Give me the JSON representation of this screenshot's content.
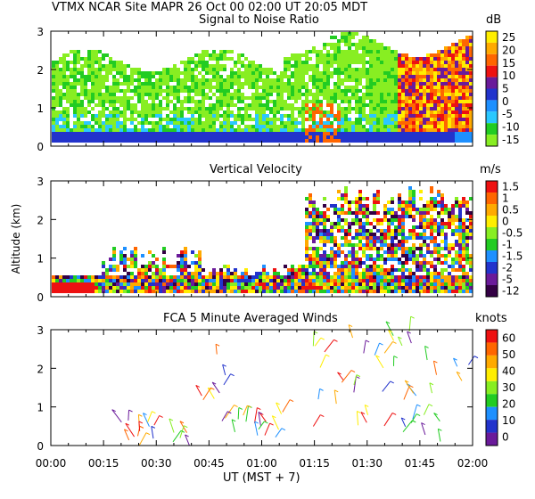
{
  "header": {
    "site": "VTMX   NCAR Site   MAPR 26 Oct 00   02:00 UT   20:05   MDT"
  },
  "chart_data": [
    {
      "type": "heatmap",
      "title": "Signal to Noise Ratio",
      "units": "dB",
      "ylim": [
        0,
        3
      ],
      "yticks": [
        "0",
        "1",
        "2",
        "3"
      ],
      "colorbar": {
        "labels": [
          "25",
          "20",
          "15",
          "10",
          "5",
          "0",
          "-5",
          "-10",
          "-15"
        ],
        "colors": [
          "#ffee00",
          "#ffaa00",
          "#ff6600",
          "#ee1111",
          "#6a1a9a",
          "#2233cc",
          "#1e90ff",
          "#2ac8ff",
          "#22cc22",
          "#88ee22"
        ]
      }
    },
    {
      "type": "heatmap",
      "title": "Vertical Velocity",
      "units": "m/s",
      "ylabel": "Altitude (km)",
      "ylim": [
        0,
        3
      ],
      "yticks": [
        "0",
        "1",
        "2",
        "3"
      ],
      "colorbar": {
        "labels": [
          "1.5",
          "1",
          "0.5",
          "0",
          "-0.5",
          "-1",
          "-1.5",
          "-2",
          "-5",
          "-12"
        ],
        "colors": [
          "#ee1111",
          "#ff6600",
          "#ffaa00",
          "#ffee00",
          "#88ee22",
          "#22cc22",
          "#1e90ff",
          "#2233cc",
          "#6a1a9a",
          "#330044"
        ]
      }
    },
    {
      "type": "scatter",
      "title": "FCA 5 Minute Averaged Winds",
      "units": "knots",
      "ylim": [
        0,
        3
      ],
      "yticks": [
        "0",
        "1",
        "2",
        "3"
      ],
      "xlabel": "UT   (MST + 7)",
      "xticks": [
        "00:00",
        "00:15",
        "00:30",
        "00:45",
        "01:00",
        "01:15",
        "01:30",
        "01:45",
        "02:00"
      ],
      "colorbar": {
        "labels": [
          "60",
          "50",
          "40",
          "30",
          "20",
          "10",
          "0"
        ],
        "colors": [
          "#ee1111",
          "#ff6600",
          "#ffaa00",
          "#ffee00",
          "#88ee22",
          "#22cc22",
          "#1e90ff",
          "#2233cc",
          "#6a1a9a"
        ]
      }
    }
  ]
}
